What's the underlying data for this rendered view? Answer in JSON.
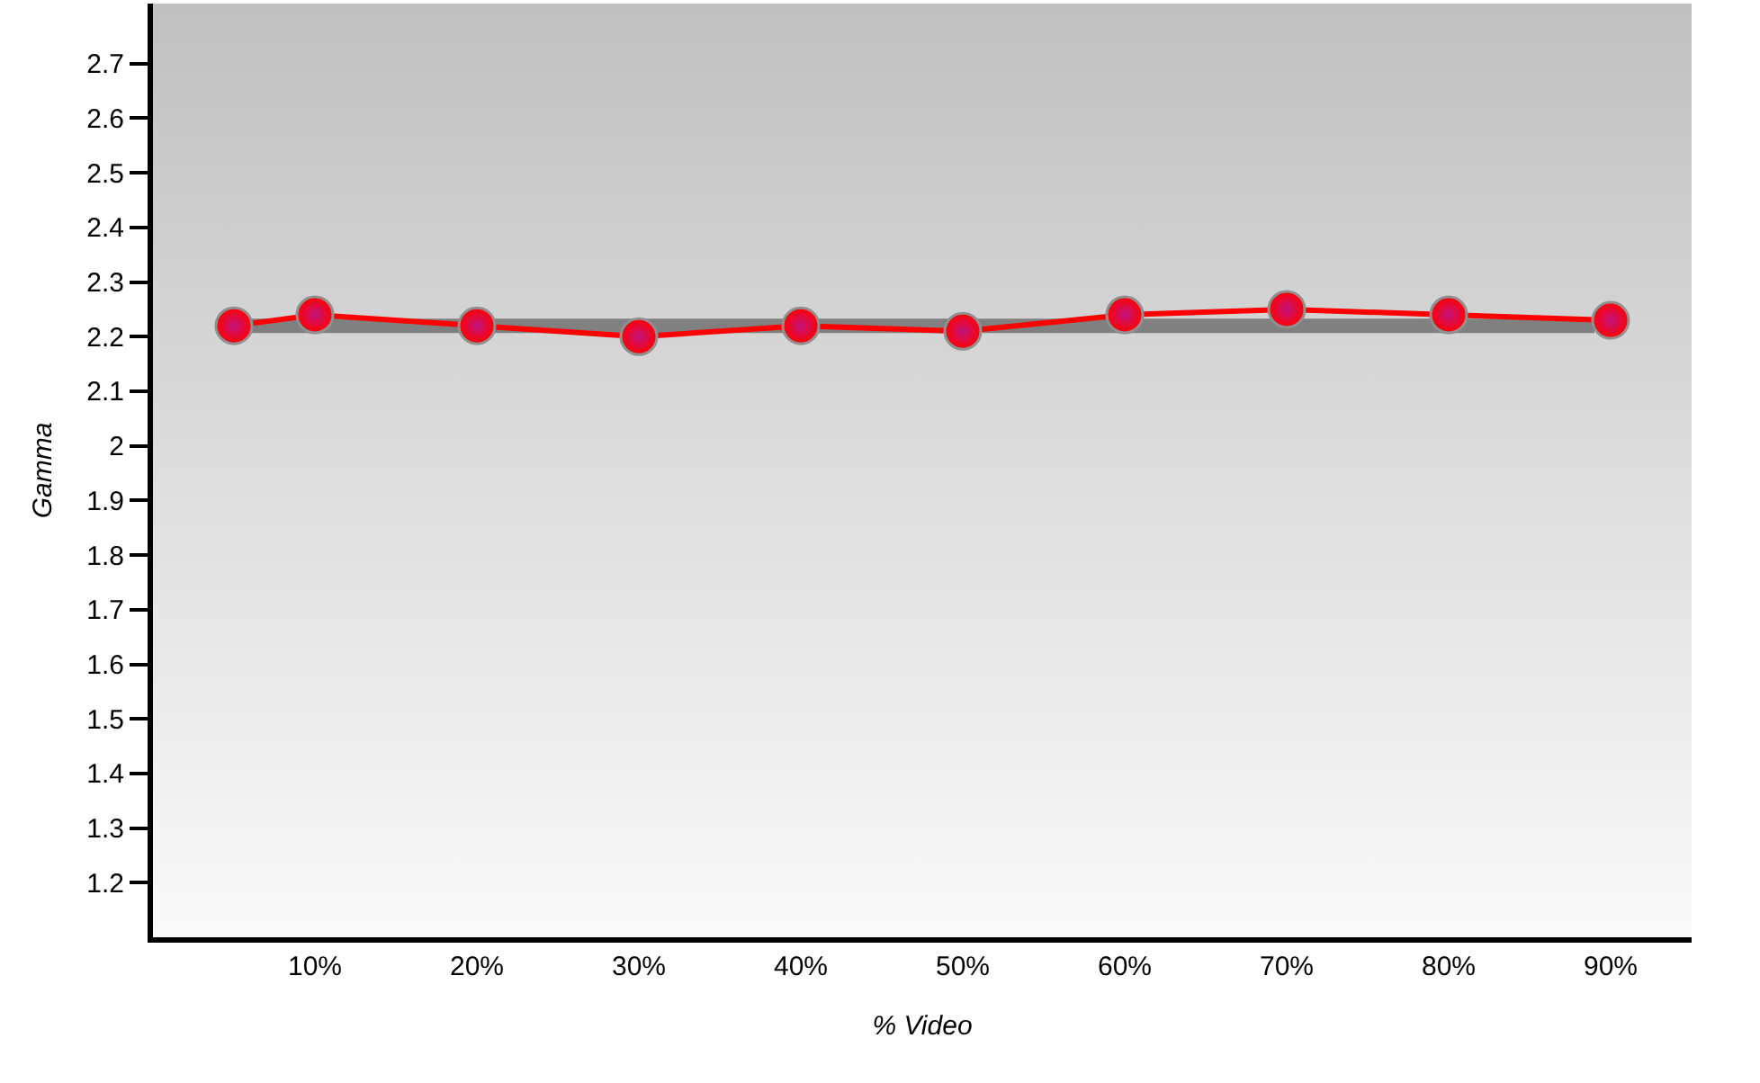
{
  "chart_data": {
    "type": "line",
    "xlabel": "% Video",
    "ylabel": "Gamma",
    "xlim": [
      0,
      95
    ],
    "xticks": [
      {
        "value": 10,
        "label": "10%"
      },
      {
        "value": 20,
        "label": "20%"
      },
      {
        "value": 30,
        "label": "30%"
      },
      {
        "value": 40,
        "label": "40%"
      },
      {
        "value": 50,
        "label": "50%"
      },
      {
        "value": 60,
        "label": "60%"
      },
      {
        "value": 70,
        "label": "70%"
      },
      {
        "value": 80,
        "label": "80%"
      },
      {
        "value": 90,
        "label": "90%"
      }
    ],
    "ylim": [
      1.1,
      2.81
    ],
    "yticks": [
      1.2,
      1.3,
      1.4,
      1.5,
      1.6,
      1.7,
      1.8,
      1.9,
      2,
      2.1,
      2.2,
      2.3,
      2.4,
      2.5,
      2.6,
      2.7
    ],
    "grid": false,
    "series": [
      {
        "color": "#808080",
        "x": [
          5,
          89
        ],
        "values": [
          2.22,
          2.22
        ]
      },
      {
        "color": "#ff0000",
        "x": [
          5,
          10,
          20,
          30,
          40,
          50,
          60,
          70,
          80,
          90
        ],
        "values": [
          2.22,
          2.24,
          2.22,
          2.2,
          2.22,
          2.21,
          2.24,
          2.25,
          2.24,
          2.23
        ],
        "marker": "circle",
        "line_style": "solid"
      }
    ]
  }
}
